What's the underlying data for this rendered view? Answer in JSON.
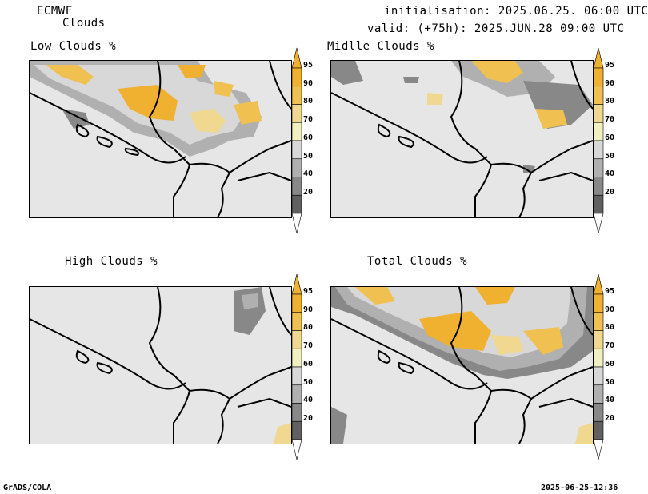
{
  "header": {
    "model": "ECMWF",
    "product": "Clouds",
    "init": "initialisation: 2025.06.25. 06:00 UTC",
    "valid": "valid: (+75h): 2025.JUN.28 09:00 UTC"
  },
  "panels": [
    {
      "title": "Low Clouds %",
      "id": "low"
    },
    {
      "title": "Midlle Clouds %",
      "id": "middle"
    },
    {
      "title": "High Clouds %",
      "id": "high"
    },
    {
      "title": "Total Clouds %",
      "id": "total"
    }
  ],
  "legend": {
    "levels": [
      "95",
      "90",
      "80",
      "70",
      "60",
      "50",
      "40",
      "20"
    ],
    "colors": [
      "#f0b030",
      "#f0c050",
      "#f0d890",
      "#f0f0c0",
      "#d8d8d8",
      "#b0b0b0",
      "#888888",
      "#606060"
    ],
    "background_color": "#e6e6e6"
  },
  "footer": {
    "left": "GrADS/COLA",
    "right": "2025-06-25-12:36"
  }
}
